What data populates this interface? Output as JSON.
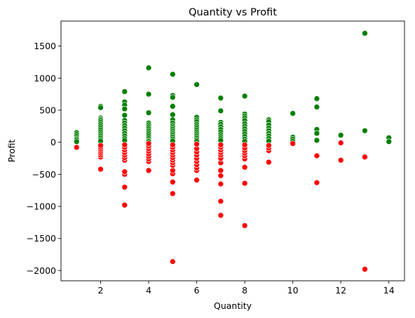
{
  "chart_data": {
    "type": "scatter",
    "title": "Quantity vs Profit",
    "xlabel": "Quantity",
    "ylabel": "Profit",
    "xlim": [
      0.35,
      14.65
    ],
    "ylim": [
      -2160,
      1890
    ],
    "xticks": [
      2,
      4,
      6,
      8,
      10,
      12,
      14
    ],
    "yticks": [
      -2000,
      -1500,
      -1000,
      -500,
      0,
      500,
      1000,
      1500
    ],
    "ytick_labels": [
      "−2000",
      "−1500",
      "−1000",
      "−500",
      "0",
      "500",
      "1000",
      "1500"
    ],
    "grid": false,
    "legend": "none",
    "colors": {
      "positive": "#008000",
      "negative": "#ff0000",
      "edge": "#ffffff"
    },
    "series": [
      {
        "color": "positive",
        "points": [
          [
            1,
            150
          ],
          [
            1,
            120
          ],
          [
            1,
            90
          ],
          [
            1,
            60
          ],
          [
            1,
            40
          ],
          [
            1,
            10
          ],
          [
            2,
            560
          ],
          [
            2,
            540
          ],
          [
            2,
            380
          ],
          [
            2,
            360
          ],
          [
            2,
            340
          ],
          [
            2,
            310
          ],
          [
            2,
            280
          ],
          [
            2,
            250
          ],
          [
            2,
            220
          ],
          [
            2,
            190
          ],
          [
            2,
            160
          ],
          [
            2,
            130
          ],
          [
            2,
            100
          ],
          [
            2,
            70
          ],
          [
            2,
            40
          ],
          [
            2,
            15
          ],
          [
            3,
            790
          ],
          [
            3,
            630
          ],
          [
            3,
            580
          ],
          [
            3,
            520
          ],
          [
            3,
            420
          ],
          [
            3,
            340
          ],
          [
            3,
            300
          ],
          [
            3,
            260
          ],
          [
            3,
            220
          ],
          [
            3,
            180
          ],
          [
            3,
            140
          ],
          [
            3,
            100
          ],
          [
            3,
            60
          ],
          [
            3,
            30
          ],
          [
            4,
            1160
          ],
          [
            4,
            750
          ],
          [
            4,
            460
          ],
          [
            4,
            300
          ],
          [
            4,
            270
          ],
          [
            4,
            240
          ],
          [
            4,
            210
          ],
          [
            4,
            180
          ],
          [
            4,
            150
          ],
          [
            4,
            120
          ],
          [
            4,
            90
          ],
          [
            4,
            60
          ],
          [
            4,
            30
          ],
          [
            4,
            10
          ],
          [
            5,
            1060
          ],
          [
            5,
            730
          ],
          [
            5,
            700
          ],
          [
            5,
            570
          ],
          [
            5,
            560
          ],
          [
            5,
            430
          ],
          [
            5,
            350
          ],
          [
            5,
            300
          ],
          [
            5,
            260
          ],
          [
            5,
            230
          ],
          [
            5,
            200
          ],
          [
            5,
            170
          ],
          [
            5,
            140
          ],
          [
            5,
            110
          ],
          [
            5,
            80
          ],
          [
            5,
            50
          ],
          [
            5,
            20
          ],
          [
            6,
            900
          ],
          [
            6,
            390
          ],
          [
            6,
            350
          ],
          [
            6,
            320
          ],
          [
            6,
            280
          ],
          [
            6,
            250
          ],
          [
            6,
            220
          ],
          [
            6,
            190
          ],
          [
            6,
            160
          ],
          [
            6,
            130
          ],
          [
            6,
            100
          ],
          [
            6,
            70
          ],
          [
            6,
            40
          ],
          [
            6,
            15
          ],
          [
            7,
            690
          ],
          [
            7,
            490
          ],
          [
            7,
            310
          ],
          [
            7,
            280
          ],
          [
            7,
            240
          ],
          [
            7,
            200
          ],
          [
            7,
            160
          ],
          [
            7,
            120
          ],
          [
            7,
            90
          ],
          [
            7,
            60
          ],
          [
            7,
            30
          ],
          [
            8,
            720
          ],
          [
            8,
            440
          ],
          [
            8,
            410
          ],
          [
            8,
            380
          ],
          [
            8,
            340
          ],
          [
            8,
            290
          ],
          [
            8,
            250
          ],
          [
            8,
            210
          ],
          [
            8,
            170
          ],
          [
            8,
            130
          ],
          [
            8,
            90
          ],
          [
            8,
            50
          ],
          [
            8,
            15
          ],
          [
            9,
            350
          ],
          [
            9,
            320
          ],
          [
            9,
            270
          ],
          [
            9,
            220
          ],
          [
            9,
            180
          ],
          [
            9,
            140
          ],
          [
            9,
            100
          ],
          [
            9,
            60
          ],
          [
            9,
            20
          ],
          [
            10,
            450
          ],
          [
            10,
            80
          ],
          [
            10,
            50
          ],
          [
            10,
            15
          ],
          [
            11,
            680
          ],
          [
            11,
            550
          ],
          [
            11,
            200
          ],
          [
            11,
            140
          ],
          [
            11,
            30
          ],
          [
            12,
            110
          ],
          [
            13,
            1700
          ],
          [
            13,
            180
          ],
          [
            14,
            70
          ],
          [
            14,
            10
          ]
        ]
      },
      {
        "color": "negative",
        "points": [
          [
            1,
            -80
          ],
          [
            2,
            -420
          ],
          [
            2,
            -230
          ],
          [
            2,
            -200
          ],
          [
            2,
            -170
          ],
          [
            2,
            -140
          ],
          [
            2,
            -110
          ],
          [
            2,
            -80
          ],
          [
            2,
            -50
          ],
          [
            3,
            -980
          ],
          [
            3,
            -700
          ],
          [
            3,
            -500
          ],
          [
            3,
            -460
          ],
          [
            3,
            -280
          ],
          [
            3,
            -240
          ],
          [
            3,
            -200
          ],
          [
            3,
            -160
          ],
          [
            3,
            -120
          ],
          [
            3,
            -80
          ],
          [
            3,
            -40
          ],
          [
            4,
            -440
          ],
          [
            4,
            -300
          ],
          [
            4,
            -260
          ],
          [
            4,
            -220
          ],
          [
            4,
            -180
          ],
          [
            4,
            -140
          ],
          [
            4,
            -100
          ],
          [
            4,
            -60
          ],
          [
            4,
            -20
          ],
          [
            5,
            -1860
          ],
          [
            5,
            -800
          ],
          [
            5,
            -620
          ],
          [
            5,
            -490
          ],
          [
            5,
            -440
          ],
          [
            5,
            -360
          ],
          [
            5,
            -320
          ],
          [
            5,
            -280
          ],
          [
            5,
            -240
          ],
          [
            5,
            -200
          ],
          [
            5,
            -160
          ],
          [
            5,
            -120
          ],
          [
            5,
            -80
          ],
          [
            5,
            -40
          ],
          [
            6,
            -590
          ],
          [
            6,
            -440
          ],
          [
            6,
            -400
          ],
          [
            6,
            -350
          ],
          [
            6,
            -300
          ],
          [
            6,
            -250
          ],
          [
            6,
            -200
          ],
          [
            6,
            -150
          ],
          [
            6,
            -100
          ],
          [
            6,
            -30
          ],
          [
            7,
            -1140
          ],
          [
            7,
            -920
          ],
          [
            7,
            -650
          ],
          [
            7,
            -520
          ],
          [
            7,
            -440
          ],
          [
            7,
            -320
          ],
          [
            7,
            -250
          ],
          [
            7,
            -200
          ],
          [
            7,
            -160
          ],
          [
            7,
            -120
          ],
          [
            7,
            -80
          ],
          [
            7,
            -40
          ],
          [
            8,
            -1300
          ],
          [
            8,
            -640
          ],
          [
            8,
            -390
          ],
          [
            8,
            -260
          ],
          [
            8,
            -210
          ],
          [
            8,
            -170
          ],
          [
            8,
            -130
          ],
          [
            8,
            -90
          ],
          [
            8,
            -40
          ],
          [
            9,
            -310
          ],
          [
            9,
            -130
          ],
          [
            9,
            -90
          ],
          [
            9,
            -50
          ],
          [
            10,
            -20
          ],
          [
            11,
            -630
          ],
          [
            11,
            -210
          ],
          [
            12,
            -280
          ],
          [
            12,
            -10
          ],
          [
            13,
            -1980
          ],
          [
            13,
            -230
          ]
        ]
      }
    ]
  }
}
